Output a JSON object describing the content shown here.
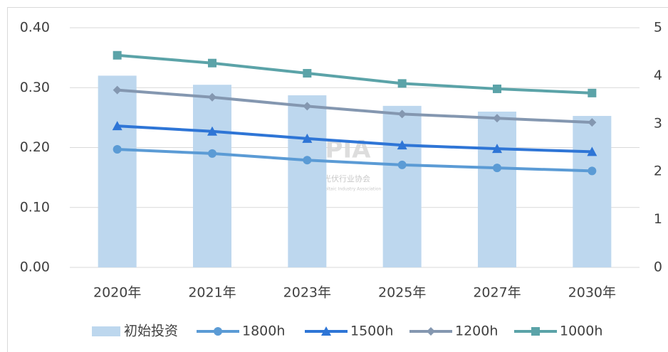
{
  "chart_data": {
    "type": "bar",
    "categories": [
      "2020年",
      "2021年",
      "2023年",
      "2025年",
      "2027年",
      "2030年"
    ],
    "series": [
      {
        "name": "初始投资",
        "type": "bar",
        "axis": "y2",
        "color": "#bdd7ee",
        "values": [
          4.0,
          3.81,
          3.59,
          3.37,
          3.25,
          3.16
        ]
      },
      {
        "name": "1800h",
        "type": "line",
        "marker": "circle",
        "color": "#5b9bd5",
        "values": [
          0.197,
          0.19,
          0.179,
          0.171,
          0.166,
          0.161
        ]
      },
      {
        "name": "1500h",
        "type": "line",
        "marker": "triangle",
        "color": "#2e75d6",
        "values": [
          0.236,
          0.227,
          0.215,
          0.204,
          0.198,
          0.193
        ]
      },
      {
        "name": "1200h",
        "type": "line",
        "marker": "diamond",
        "color": "#8497b0",
        "values": [
          0.296,
          0.284,
          0.269,
          0.256,
          0.249,
          0.242
        ]
      },
      {
        "name": "1000h",
        "type": "line",
        "marker": "square",
        "color": "#5ba3a8",
        "values": [
          0.354,
          0.341,
          0.324,
          0.307,
          0.298,
          0.291
        ]
      }
    ],
    "ylim": [
      0,
      0.4
    ],
    "yticks": [
      {
        "value": 0,
        "label": "0.00"
      },
      {
        "value": 0.1,
        "label": "0.10"
      },
      {
        "value": 0.2,
        "label": "0.20"
      },
      {
        "value": 0.3,
        "label": "0.30"
      },
      {
        "value": 0.4,
        "label": "0.40"
      }
    ],
    "y2lim": [
      0,
      5
    ],
    "y2ticks": [
      0,
      1,
      2,
      3,
      4,
      5
    ],
    "grid": true,
    "legend": "bottom",
    "watermark": [
      "CPIA",
      "中国光伏行业协会",
      "China Photovoltaic Industry Association"
    ]
  }
}
